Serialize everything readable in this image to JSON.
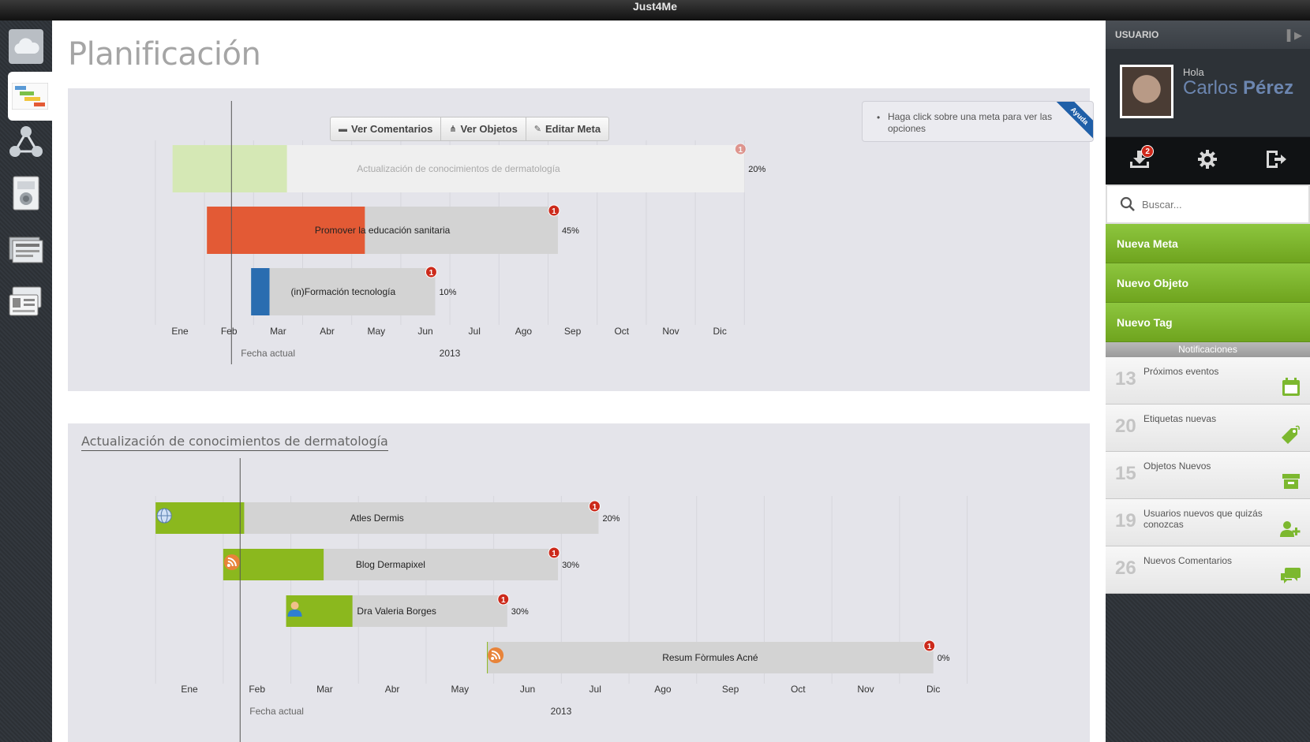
{
  "app": {
    "title": "Just4Me"
  },
  "nav": [
    {
      "icon": "cloud-icon"
    },
    {
      "icon": "gantt-icon",
      "active": true
    },
    {
      "icon": "network-icon"
    },
    {
      "icon": "device-icon"
    },
    {
      "icon": "documents-icon"
    },
    {
      "icon": "contacts-icon"
    }
  ],
  "page": {
    "title": "Planificación"
  },
  "toolbar": {
    "comments_label": "Ver Comentarios",
    "objects_label": "Ver Objetos",
    "edit_label": "Editar Meta"
  },
  "help": {
    "text": "Haga click sobre una meta para ver las opciones",
    "ribbon": "Ayuda"
  },
  "colors": {
    "accent_green": "#8dc63f",
    "badge_red": "#d0291b",
    "user_name": "#6c86b0"
  },
  "chart_data": [
    {
      "type": "gantt",
      "months": [
        "Ene",
        "Feb",
        "Mar",
        "Abr",
        "May",
        "Jun",
        "Jul",
        "Ago",
        "Sep",
        "Oct",
        "Nov",
        "Dic"
      ],
      "year": "2013",
      "current_date_label": "Fecha actual",
      "current_date": 1.05,
      "tasks": [
        {
          "label": "Actualización de conocimientos de dermatología",
          "start": -0.15,
          "end": 11.5,
          "progress": 0.2,
          "progress_label": "20%",
          "color": "#d5e8b5",
          "bg": "#efefef",
          "badge": "1",
          "faded": true
        },
        {
          "label": "Promover la educación sanitaria",
          "start": 0.55,
          "end": 7.7,
          "progress": 0.45,
          "progress_label": "45%",
          "color": "#e35a35",
          "bg": "#d3d3d3",
          "badge": "1"
        },
        {
          "label": "(in)Formación tecnología",
          "start": 1.45,
          "end": 5.2,
          "progress": 0.1,
          "progress_label": "10%",
          "color": "#2a6db0",
          "bg": "#d3d3d3",
          "badge": "1"
        }
      ]
    },
    {
      "type": "gantt",
      "title": "Actualización de conocimientos de dermatología",
      "months": [
        "Ene",
        "Feb",
        "Mar",
        "Abr",
        "May",
        "Jun",
        "Jul",
        "Ago",
        "Sep",
        "Oct",
        "Nov",
        "Dic"
      ],
      "year": "2013",
      "current_date_label": "Fecha actual",
      "current_date": 0.75,
      "tasks": [
        {
          "label": "Atles Dermis",
          "start": -0.5,
          "end": 6.05,
          "progress": 0.2,
          "progress_label": "20%",
          "color": "#8bb81e",
          "bg": "#d3d3d3",
          "badge": "1",
          "icon": "globe-icon"
        },
        {
          "label": "Blog Dermapixel",
          "start": 0.5,
          "end": 5.45,
          "progress": 0.3,
          "progress_label": "30%",
          "color": "#8bb81e",
          "bg": "#d3d3d3",
          "badge": "1",
          "icon": "rss-icon"
        },
        {
          "label": "Dra Valeria Borges",
          "start": 1.43,
          "end": 4.7,
          "progress": 0.3,
          "progress_label": "30%",
          "color": "#8bb81e",
          "bg": "#d3d3d3",
          "badge": "1",
          "icon": "person-icon"
        },
        {
          "label": "Resum Fòrmules Acné",
          "start": 4.4,
          "end": 11.0,
          "progress": 0.0,
          "progress_label": "0%",
          "color": "#8bb81e",
          "bg": "#d3d3d3",
          "badge": "1",
          "icon": "rss-icon"
        }
      ]
    }
  ],
  "user": {
    "section_label": "USUARIO",
    "greeting": "Hola",
    "first_name": "Carlos",
    "last_name": "Pérez",
    "downloads_badge": "2"
  },
  "search": {
    "placeholder": "Buscar..."
  },
  "quick_actions": [
    "Nueva Meta",
    "Nuevo Objeto",
    "Nuevo Tag"
  ],
  "notifications": {
    "header": "Notificaciones",
    "items": [
      {
        "count": "13",
        "label": "Próximos eventos",
        "icon": "calendar-icon"
      },
      {
        "count": "20",
        "label": "Etiquetas nuevas",
        "icon": "tag-icon"
      },
      {
        "count": "15",
        "label": "Objetos Nuevos",
        "icon": "box-icon"
      },
      {
        "count": "19",
        "label": "Usuarios nuevos que quizás conozcas",
        "icon": "add-user-icon"
      },
      {
        "count": "26",
        "label": "Nuevos Comentarios",
        "icon": "comments-icon"
      }
    ]
  }
}
